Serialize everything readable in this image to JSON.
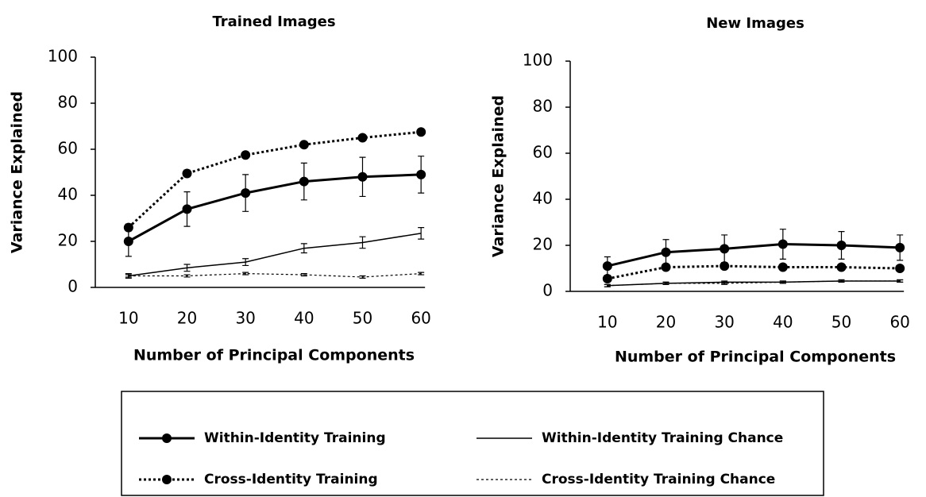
{
  "chart_data": [
    {
      "type": "line",
      "title": "Trained Images",
      "x_label": "Number of Principal Components",
      "y_label": "Variance Explained",
      "categories": [
        "10",
        "20",
        "30",
        "40",
        "50",
        "60"
      ],
      "ylim": [
        0,
        100
      ],
      "yticks": [
        0,
        20,
        40,
        60,
        80,
        100
      ],
      "series": [
        {
          "name": "Within-Identity Training",
          "color": "#000000",
          "line_style": "solid",
          "line_width": 3,
          "marker": true,
          "values": [
            20,
            34,
            41,
            46,
            48,
            49
          ],
          "errors": [
            6.5,
            7.5,
            8,
            8,
            8.5,
            8
          ]
        },
        {
          "name": "Cross-Identity Training",
          "color": "#000000",
          "line_style": "dotted",
          "line_width": 3,
          "marker": true,
          "values": [
            26,
            49.5,
            57.5,
            62,
            65,
            67.5
          ],
          "errors": [
            1.5,
            1.5,
            1,
            1,
            1,
            1
          ]
        },
        {
          "name": "Within-Identity Training Chance",
          "color": "#000000",
          "line_style": "solid",
          "line_width": 1.5,
          "marker": false,
          "values": [
            5,
            8.5,
            11,
            17,
            19.5,
            23.5
          ],
          "errors": [
            1,
            1.5,
            1.5,
            2,
            2.5,
            2.5
          ]
        },
        {
          "name": "Cross-Identity Training Chance",
          "color": "#000000",
          "line_style": "dotted",
          "line_width": 1.2,
          "marker": false,
          "values": [
            5,
            5,
            6,
            5.5,
            4.5,
            6
          ],
          "errors": [
            0.5,
            0.5,
            0.5,
            0.5,
            0.5,
            0.5
          ]
        }
      ]
    },
    {
      "type": "line",
      "title": "New Images",
      "x_label": "Number of Principal Components",
      "y_label": "Variance Explained",
      "categories": [
        "10",
        "20",
        "30",
        "40",
        "50",
        "60"
      ],
      "ylim": [
        0,
        100
      ],
      "yticks": [
        0,
        20,
        40,
        60,
        80,
        100
      ],
      "series": [
        {
          "color": "#000000",
          "line_style": "solid",
          "line_width": 3,
          "marker": true,
          "values": [
            11,
            17,
            18.5,
            20.5,
            20,
            19
          ],
          "errors": [
            4,
            5.5,
            6,
            6.5,
            6,
            5.5
          ]
        },
        {
          "color": "#000000",
          "line_style": "dotted",
          "line_width": 3,
          "marker": true,
          "values": [
            5.5,
            10.5,
            11,
            10.5,
            10.5,
            10
          ],
          "errors": [
            1,
            1,
            1,
            1,
            1,
            1
          ]
        },
        {
          "color": "#000000",
          "line_style": "solid",
          "line_width": 1.5,
          "marker": false,
          "values": [
            2.5,
            3.5,
            4,
            4,
            4.5,
            4.5
          ],
          "errors": [
            0.5,
            0.5,
            0.5,
            0.5,
            0.5,
            0.5
          ]
        },
        {
          "color": "#000000",
          "line_style": "dotted",
          "line_width": 1.2,
          "marker": false,
          "values": [
            2.5,
            3.5,
            3.5,
            4,
            4.5,
            4.5
          ],
          "errors": [
            0.5,
            0.5,
            0.5,
            0.5,
            0.5,
            0.5
          ]
        }
      ]
    }
  ]
}
